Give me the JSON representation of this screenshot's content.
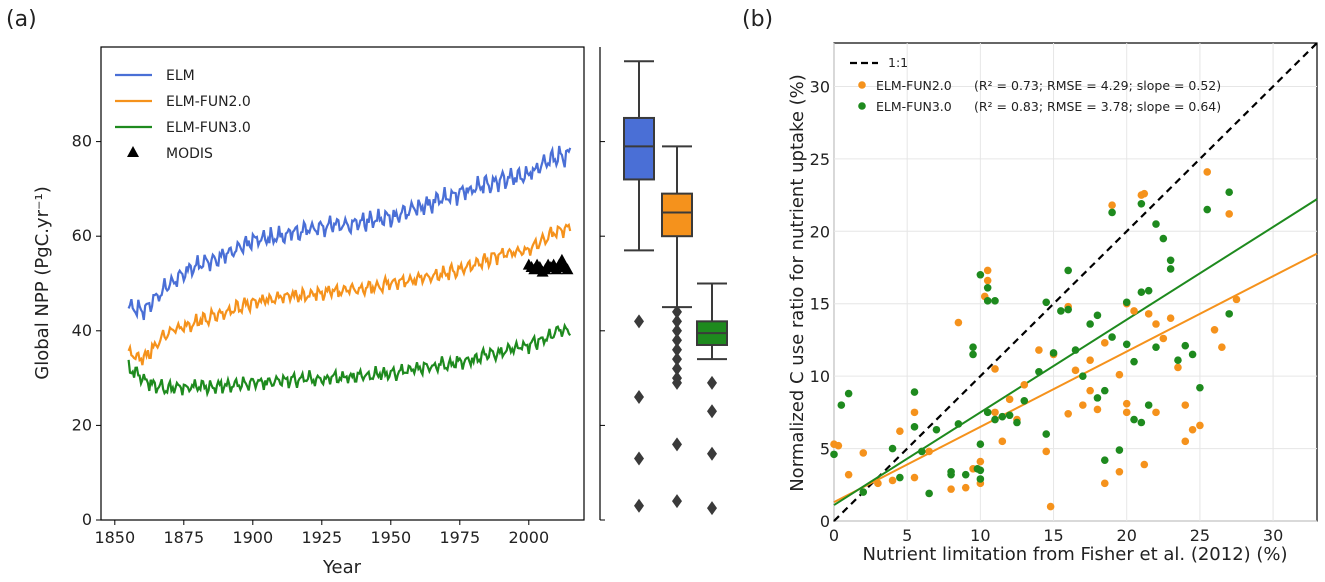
{
  "panels": {
    "a": {
      "label": "(a)",
      "xlabel": "Year",
      "ylabel": "Global NPP (PgC.yr⁻¹)",
      "xticks": [
        1850,
        1875,
        1900,
        1925,
        1950,
        1975,
        2000
      ],
      "yticks": [
        0,
        20,
        40,
        60,
        80
      ]
    },
    "b": {
      "label": "(b)",
      "xlabel": "Nutrient limitation from Fisher et al. (2012) (%)",
      "ylabel": "Normalized C use ratio for nutrient uptake (%)",
      "xticks": [
        0,
        5,
        10,
        15,
        20,
        25,
        30
      ],
      "yticks": [
        0,
        5,
        10,
        15,
        20,
        25,
        30
      ]
    }
  },
  "chart_data": [
    {
      "type": "line",
      "xlabel": "Year",
      "ylabel": "Global NPP (PgC.yr⁻¹)",
      "xlim": [
        1845,
        2020
      ],
      "ylim": [
        0,
        100
      ],
      "grid": false,
      "legend_position": "top-left",
      "series": [
        {
          "name": "ELM",
          "color": "#4a6fd6",
          "x": [
            1855,
            1860,
            1865,
            1870,
            1880,
            1890,
            1900,
            1910,
            1925,
            1940,
            1950,
            1960,
            1970,
            1980,
            1990,
            2000,
            2005,
            2010,
            2015
          ],
          "y": [
            45,
            44,
            47,
            50,
            54,
            56,
            59,
            60,
            62,
            63,
            64,
            66,
            68,
            70,
            72,
            73,
            75,
            77,
            77
          ]
        },
        {
          "name": "ELM-FUN2.0",
          "color": "#f5921c",
          "x": [
            1855,
            1860,
            1865,
            1870,
            1880,
            1890,
            1900,
            1910,
            1925,
            1940,
            1950,
            1960,
            1970,
            1980,
            1990,
            2000,
            2005,
            2010,
            2015
          ],
          "y": [
            35,
            34,
            37,
            40,
            42,
            44,
            46,
            47,
            48,
            49,
            50,
            51,
            52,
            54,
            56,
            57,
            59,
            61,
            62
          ]
        },
        {
          "name": "ELM-FUN3.0",
          "color": "#1e8a1e",
          "x": [
            1855,
            1860,
            1865,
            1870,
            1880,
            1890,
            1900,
            1910,
            1925,
            1940,
            1950,
            1960,
            1970,
            1980,
            1990,
            2000,
            2005,
            2010,
            2015
          ],
          "y": [
            32,
            30,
            28,
            28,
            28,
            28.5,
            29,
            29.5,
            30,
            30.5,
            31,
            32,
            33,
            34,
            35.5,
            37,
            38,
            40,
            40
          ]
        },
        {
          "name": "MODIS",
          "color": "#000000",
          "marker": "triangle",
          "x": [
            2000,
            2001,
            2002,
            2003,
            2004,
            2005,
            2006,
            2007,
            2008,
            2009,
            2010,
            2011,
            2012,
            2013,
            2014
          ],
          "y": [
            54,
            53.5,
            53,
            54,
            53.5,
            52.5,
            53,
            54,
            53.5,
            54,
            53,
            54,
            55,
            53.5,
            53
          ]
        }
      ],
      "boxplots": [
        {
          "name": "ELM",
          "color": "#4a6fd6",
          "whisker_low": 57,
          "q1": 72,
          "median": 79,
          "q3": 85,
          "whisker_high": 97,
          "outliers": [
            42,
            26,
            13,
            3
          ]
        },
        {
          "name": "ELM-FUN2.0",
          "color": "#f5921c",
          "whisker_low": 45,
          "q1": 60,
          "median": 65,
          "q3": 69,
          "whisker_high": 79,
          "outliers": [
            44,
            42,
            40,
            38,
            36,
            34,
            32,
            30,
            29,
            16,
            4
          ]
        },
        {
          "name": "ELM-FUN3.0",
          "color": "#1e8a1e",
          "whisker_low": 34,
          "q1": 37,
          "median": 39.5,
          "q3": 42,
          "whisker_high": 50,
          "outliers": [
            29,
            23,
            14,
            2.5
          ]
        }
      ]
    },
    {
      "type": "scatter",
      "xlabel": "Nutrient limitation from Fisher et al. (2012) (%)",
      "ylabel": "Normalized C use ratio for nutrient uptake (%)",
      "xlim": [
        0,
        33
      ],
      "ylim": [
        0,
        33
      ],
      "grid": true,
      "legend_position": "top-left",
      "reference_line": {
        "name": "1:1",
        "slope": 1,
        "intercept": 0,
        "color": "#000000"
      },
      "series": [
        {
          "name": "ELM-FUN2.0",
          "stats": "(R² = 0.73; RMSE = 4.29; slope = 0.52)",
          "color": "#f5921c",
          "fit": {
            "slope": 0.52,
            "intercept": 1.3
          },
          "points": [
            [
              0,
              5.3
            ],
            [
              0.3,
              5.2
            ],
            [
              1,
              3.2
            ],
            [
              2,
              4.7
            ],
            [
              3,
              2.6
            ],
            [
              4,
              2.8
            ],
            [
              4.5,
              6.2
            ],
            [
              5.5,
              7.5
            ],
            [
              5.5,
              3.0
            ],
            [
              6.5,
              4.8
            ],
            [
              8,
              2.2
            ],
            [
              8.5,
              13.7
            ],
            [
              9,
              2.3
            ],
            [
              9.5,
              3.6
            ],
            [
              10,
              2.6
            ],
            [
              10,
              4.1
            ],
            [
              10.3,
              15.5
            ],
            [
              10.5,
              17.3
            ],
            [
              10.5,
              16.6
            ],
            [
              11,
              10.5
            ],
            [
              11,
              7.5
            ],
            [
              11.5,
              5.5
            ],
            [
              12,
              8.4
            ],
            [
              12.5,
              7.0
            ],
            [
              13,
              9.4
            ],
            [
              14,
              11.8
            ],
            [
              14.5,
              4.8
            ],
            [
              14.8,
              1.0
            ],
            [
              15,
              11.5
            ],
            [
              16,
              14.8
            ],
            [
              16,
              7.4
            ],
            [
              16.5,
              10.4
            ],
            [
              17,
              8.0
            ],
            [
              17.5,
              11.1
            ],
            [
              17.5,
              9.0
            ],
            [
              18,
              7.7
            ],
            [
              18.5,
              2.6
            ],
            [
              18.5,
              12.3
            ],
            [
              19,
              21.8
            ],
            [
              19.5,
              10.1
            ],
            [
              19.5,
              3.4
            ],
            [
              20,
              8.1
            ],
            [
              20,
              7.5
            ],
            [
              20,
              15.0
            ],
            [
              20.5,
              14.5
            ],
            [
              21,
              22.5
            ],
            [
              21.2,
              22.6
            ],
            [
              21.2,
              3.9
            ],
            [
              21.5,
              14.3
            ],
            [
              22,
              13.6
            ],
            [
              22,
              7.5
            ],
            [
              22.5,
              12.6
            ],
            [
              23,
              14.0
            ],
            [
              23.5,
              10.6
            ],
            [
              24,
              8.0
            ],
            [
              24,
              5.5
            ],
            [
              24.5,
              6.3
            ],
            [
              25,
              6.6
            ],
            [
              25.5,
              24.1
            ],
            [
              26,
              13.2
            ],
            [
              26.5,
              12.0
            ],
            [
              27,
              21.2
            ],
            [
              27.5,
              15.3
            ]
          ]
        },
        {
          "name": "ELM-FUN3.0",
          "stats": "(R² = 0.83; RMSE = 3.78; slope = 0.64)",
          "color": "#1e8a1e",
          "fit": {
            "slope": 0.64,
            "intercept": 1.1
          },
          "points": [
            [
              0,
              4.6
            ],
            [
              0.5,
              8.0
            ],
            [
              1,
              8.8
            ],
            [
              2,
              2.0
            ],
            [
              4,
              5.0
            ],
            [
              4.5,
              3.0
            ],
            [
              5.5,
              8.9
            ],
            [
              5.5,
              6.5
            ],
            [
              6,
              4.8
            ],
            [
              6.5,
              1.9
            ],
            [
              7,
              6.3
            ],
            [
              8,
              3.2
            ],
            [
              8,
              3.4
            ],
            [
              8.5,
              6.7
            ],
            [
              9,
              3.2
            ],
            [
              9.5,
              11.5
            ],
            [
              9.5,
              12.0
            ],
            [
              9.8,
              3.6
            ],
            [
              10,
              3.5
            ],
            [
              10,
              2.9
            ],
            [
              10,
              5.3
            ],
            [
              10,
              17.0
            ],
            [
              10.5,
              16.1
            ],
            [
              10.5,
              15.2
            ],
            [
              10.5,
              7.5
            ],
            [
              11,
              15.2
            ],
            [
              11,
              7.0
            ],
            [
              11.5,
              7.2
            ],
            [
              12,
              7.3
            ],
            [
              12.5,
              6.8
            ],
            [
              13,
              8.3
            ],
            [
              14,
              10.3
            ],
            [
              14.5,
              6.0
            ],
            [
              14.5,
              15.1
            ],
            [
              15,
              11.6
            ],
            [
              15.5,
              14.5
            ],
            [
              16,
              17.3
            ],
            [
              16,
              14.6
            ],
            [
              16.5,
              11.8
            ],
            [
              17,
              10.0
            ],
            [
              17.5,
              13.6
            ],
            [
              18,
              14.2
            ],
            [
              18,
              8.5
            ],
            [
              18.5,
              9.0
            ],
            [
              18.5,
              4.2
            ],
            [
              19,
              21.3
            ],
            [
              19,
              12.7
            ],
            [
              19.5,
              4.9
            ],
            [
              20,
              15.1
            ],
            [
              20,
              12.2
            ],
            [
              20.5,
              11.0
            ],
            [
              21,
              15.8
            ],
            [
              21,
              21.9
            ],
            [
              21.5,
              8.0
            ],
            [
              21.5,
              15.9
            ],
            [
              22,
              12.0
            ],
            [
              22.5,
              19.5
            ],
            [
              22,
              20.5
            ],
            [
              23,
              18.0
            ],
            [
              23,
              17.4
            ],
            [
              23.5,
              11.1
            ],
            [
              24,
              12.1
            ],
            [
              24.5,
              11.5
            ],
            [
              25,
              9.2
            ],
            [
              25.5,
              21.5
            ],
            [
              27,
              22.7
            ],
            [
              27,
              14.3
            ],
            [
              20.5,
              7.0
            ],
            [
              21,
              6.8
            ]
          ]
        }
      ]
    }
  ]
}
